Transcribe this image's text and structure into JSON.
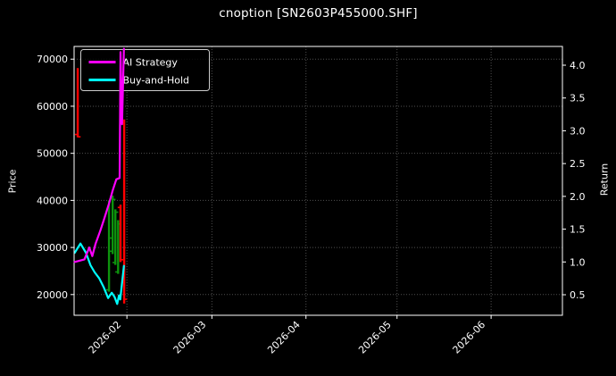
{
  "title": "cnoption [SN2603P455000.SHF]",
  "colors": {
    "background": "#000000",
    "text": "#ffffff",
    "spine": "#ffffff",
    "grid": "#4f4f4f",
    "ai_line": "#ff00ff",
    "bh_line": "#00ffff",
    "candle_up": "#0d930d",
    "candle_down": "#ff0000",
    "legend_border": "#cccccc",
    "legend_bg_alpha": 0.8
  },
  "legend": {
    "items": [
      {
        "label": "AI Strategy",
        "color_key": "ai_line"
      },
      {
        "label": "Buy-and-Hold",
        "color_key": "bh_line"
      }
    ]
  },
  "chart_data": {
    "type": "candlestick+line",
    "title": "cnoption [SN2603P455000.SHF]",
    "grid": "dotted",
    "legend_position": "upper left",
    "x_unit": "days from 2026-02-01",
    "x_domain": [
      -17.4,
      143.5
    ],
    "x_ticks": [
      {
        "label": "2026-02",
        "day": 0
      },
      {
        "label": "2026-03",
        "day": 28
      },
      {
        "label": "2026-04",
        "day": 59
      },
      {
        "label": "2026-05",
        "day": 89
      },
      {
        "label": "2026-06",
        "day": 120
      }
    ],
    "price_axis": {
      "label": "Price",
      "side": "left",
      "domain": [
        15600,
        72700
      ],
      "ticks": [
        "20000",
        "30000",
        "40000",
        "50000",
        "60000",
        "70000"
      ]
    },
    "return_axis": {
      "label": "Return",
      "side": "right",
      "domain": [
        0.187,
        4.286
      ],
      "ticks": [
        "0.5",
        "1.0",
        "1.5",
        "2.0",
        "2.5",
        "3.0",
        "3.5",
        "4.0"
      ]
    },
    "candles": [
      {
        "date": "2026-01-16",
        "day": -16.2,
        "open": 54000,
        "close": 53500,
        "low": 53400,
        "high": 68100,
        "direction": "down"
      },
      {
        "date": "2026-01-26",
        "day": -5.9,
        "open": 21000,
        "close": 32000,
        "low": 20600,
        "high": 40000,
        "direction": "up"
      },
      {
        "date": "2026-01-27",
        "day": -4.7,
        "open": 29200,
        "close": 40200,
        "low": 28600,
        "high": 41000,
        "direction": "up"
      },
      {
        "date": "2026-01-28",
        "day": -3.8,
        "open": 26800,
        "close": 37500,
        "low": 26300,
        "high": 38100,
        "direction": "up"
      },
      {
        "date": "2026-01-29",
        "day": -2.9,
        "open": 24800,
        "close": 35000,
        "low": 24400,
        "high": 35800,
        "direction": "up"
      },
      {
        "date": "2026-01-30",
        "day": -2.1,
        "open": 38500,
        "close": 27400,
        "low": 26900,
        "high": 39100,
        "direction": "down"
      },
      {
        "date": "2026-01-31",
        "day": -0.9,
        "open": 56500,
        "close": 19000,
        "low": 18100,
        "high": 57200,
        "direction": "down"
      }
    ],
    "series": [
      {
        "name": "AI Strategy",
        "axis": "return",
        "color_key": "ai_line",
        "points": [
          [
            -17.2,
            1.0
          ],
          [
            -15.5,
            1.02
          ],
          [
            -14.0,
            1.04
          ],
          [
            -12.4,
            1.22
          ],
          [
            -11.4,
            1.09
          ],
          [
            -10.3,
            1.28
          ],
          [
            -8.8,
            1.47
          ],
          [
            -7.4,
            1.67
          ],
          [
            -5.9,
            1.89
          ],
          [
            -4.7,
            2.09
          ],
          [
            -3.5,
            2.26
          ],
          [
            -2.4,
            2.28
          ],
          [
            -2.1,
            4.2
          ],
          [
            -1.6,
            3.1
          ],
          [
            -1.0,
            4.25
          ]
        ]
      },
      {
        "name": "Buy-and-Hold",
        "axis": "return",
        "color_key": "bh_line",
        "points": [
          [
            -17.2,
            1.14
          ],
          [
            -15.3,
            1.28
          ],
          [
            -13.5,
            1.14
          ],
          [
            -12.0,
            0.95
          ],
          [
            -10.6,
            0.84
          ],
          [
            -9.1,
            0.75
          ],
          [
            -7.6,
            0.61
          ],
          [
            -6.2,
            0.45
          ],
          [
            -5.0,
            0.53
          ],
          [
            -4.1,
            0.47
          ],
          [
            -3.2,
            0.36
          ],
          [
            -2.6,
            0.49
          ],
          [
            -2.2,
            0.43
          ],
          [
            -1.0,
            0.94
          ]
        ]
      }
    ]
  }
}
